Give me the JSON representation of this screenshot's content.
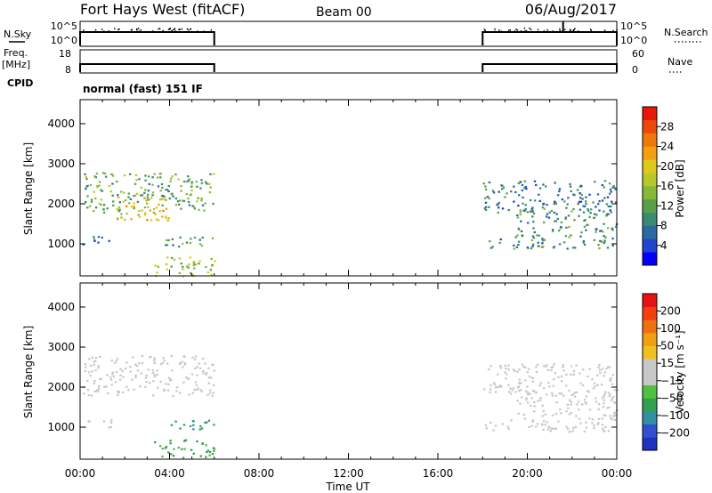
{
  "header": {
    "title": "Fort Hays West (fitACF)",
    "beam": "Beam 00",
    "date": "06/Aug/2017"
  },
  "status_panels": {
    "nsky_label": "N.Sky",
    "nsky_ticks": [
      "10^5",
      "10^0"
    ],
    "nsearch_label": "N.Search",
    "nsearch_ticks": [
      "10^5",
      "10^0"
    ],
    "freq_label": "Freq.",
    "freq_unit": "[MHz]",
    "freq_ticks": [
      "18",
      "8"
    ],
    "nave_label": "Nave",
    "nave_ticks": [
      "60",
      "0"
    ],
    "cpid_label": "CPID",
    "cpid_value": "normal (fast) 151 IF"
  },
  "x_axis": {
    "label": "Time UT",
    "tick_labels": [
      "00:00",
      "04:00",
      "08:00",
      "12:00",
      "16:00",
      "20:00",
      "00:00"
    ]
  },
  "power_colorbar": {
    "label": "Power [dB]",
    "ticks": [
      "28",
      "24",
      "20",
      "16",
      "12",
      "8",
      "4"
    ],
    "colors": [
      "#0000ff",
      "#2244cc",
      "#2a6aa0",
      "#3a8a70",
      "#58a048",
      "#88b838",
      "#b8c828",
      "#e0c818",
      "#f0a010",
      "#f07808",
      "#ee4808",
      "#e81808"
    ]
  },
  "velocity_colorbar": {
    "label": "Velocity [m s⁻¹]",
    "ticks": [
      "200",
      "100",
      "50",
      "15",
      "−15",
      "−50",
      "−100",
      "−200"
    ],
    "colors": [
      "#2030c0",
      "#3050d0",
      "#3090a0",
      "#30a050",
      "#50c040",
      "#c8c8c8",
      "#c8c8c8",
      "#f0c020",
      "#f0a010",
      "#f07010",
      "#f04010",
      "#e81010"
    ]
  },
  "chart_data": [
    {
      "type": "line",
      "title": "N.Sky / N.Search",
      "scale": "log",
      "ylim_label": [
        "10^0",
        "10^5"
      ],
      "segments": [
        {
          "x": [
            "00:00",
            "06:00"
          ]
        },
        {
          "x": [
            "18:00",
            "24:00"
          ]
        }
      ]
    },
    {
      "type": "line",
      "title": "Freq. / Nave",
      "ylim": [
        8,
        18
      ],
      "segments": [
        {
          "x": [
            "00:00",
            "06:00"
          ]
        },
        {
          "x": [
            "18:00",
            "24:00"
          ]
        }
      ]
    },
    {
      "type": "heatmap",
      "title": "Power [dB]",
      "xlabel": "Time UT",
      "ylabel": "Slant Range [km]",
      "xlim": [
        0,
        24
      ],
      "ylim": [
        200,
        4600
      ],
      "yticks": [
        1000,
        2000,
        3000,
        4000
      ],
      "clim": [
        0,
        32
      ],
      "regions": [
        {
          "t": [
            0.1,
            6.0
          ],
          "r": [
            1800,
            2800
          ],
          "value": 12
        },
        {
          "t": [
            1.6,
            4.2
          ],
          "r": [
            1600,
            2200
          ],
          "value": 20
        },
        {
          "t": [
            0.0,
            1.4
          ],
          "r": [
            1000,
            1200
          ],
          "value": 8
        },
        {
          "t": [
            3.3,
            6.0
          ],
          "r": [
            950,
            1200
          ],
          "value": 12
        },
        {
          "t": [
            3.3,
            6.0
          ],
          "r": [
            200,
            700
          ],
          "value": 16
        },
        {
          "t": [
            18.0,
            24.0
          ],
          "r": [
            900,
            1250
          ],
          "value": 10
        },
        {
          "t": [
            19.5,
            24.0
          ],
          "r": [
            1300,
            1900
          ],
          "value": 10
        },
        {
          "t": [
            18.0,
            24.0
          ],
          "r": [
            1800,
            2600
          ],
          "value": 8
        }
      ]
    },
    {
      "type": "heatmap",
      "title": "Velocity [m s⁻¹]",
      "xlabel": "Time UT",
      "ylabel": "Slant Range [km]",
      "xlim": [
        0,
        24
      ],
      "ylim": [
        200,
        4600
      ],
      "yticks": [
        1000,
        2000,
        3000,
        4000
      ],
      "clim": [
        -250,
        250
      ],
      "regions": [
        {
          "t": [
            0.1,
            6.0
          ],
          "r": [
            1800,
            2800
          ],
          "value": 0
        },
        {
          "t": [
            0.0,
            1.4
          ],
          "r": [
            1000,
            1200
          ],
          "value": 0
        },
        {
          "t": [
            3.8,
            6.0
          ],
          "r": [
            950,
            1200
          ],
          "value": -120
        },
        {
          "t": [
            3.3,
            6.0
          ],
          "r": [
            250,
            700
          ],
          "value": -90
        },
        {
          "t": [
            18.0,
            24.0
          ],
          "r": [
            900,
            1250
          ],
          "value": 0
        },
        {
          "t": [
            19.5,
            24.0
          ],
          "r": [
            1300,
            1900
          ],
          "value": 0
        },
        {
          "t": [
            18.0,
            24.0
          ],
          "r": [
            1800,
            2600
          ],
          "value": 0
        }
      ]
    }
  ]
}
